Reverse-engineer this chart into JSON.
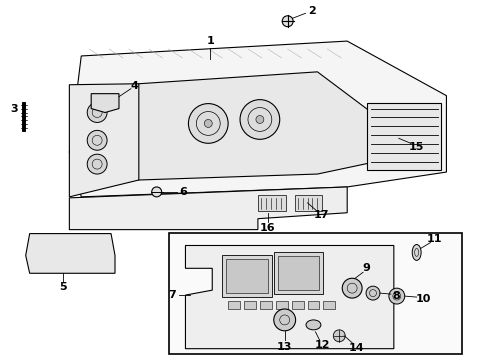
{
  "bg_color": "#ffffff",
  "line_color": "#000000",
  "gray_light": "#f5f5f5",
  "gray_med": "#e8e8e8",
  "gray_dark": "#cccccc",
  "gray_inner": "#dddddd"
}
